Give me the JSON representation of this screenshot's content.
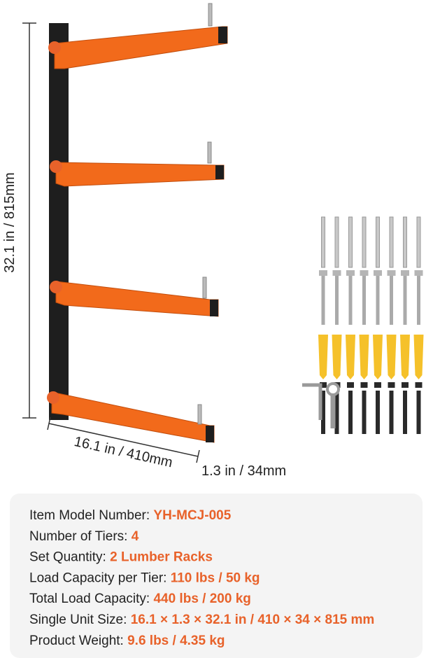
{
  "dimensions": {
    "height": "32.1 in / 815mm",
    "length": "16.1 in / 410mm",
    "width": "1.3 in / 34mm"
  },
  "specs": [
    {
      "label": "Item Model Number: ",
      "value": "YH-MCJ-005"
    },
    {
      "label": "Number of Tiers: ",
      "value": "4"
    },
    {
      "label": "Set Quantity: ",
      "value": "2 Lumber Racks"
    },
    {
      "label": "Load Capacity per Tier: ",
      "value": "110 lbs / 50 kg"
    },
    {
      "label": "Total Load Capacity: ",
      "value": "440 lbs / 200 kg"
    },
    {
      "label": "Single Unit Size: ",
      "value": "16.1 × 1.3 × 32.1 in / 410 × 34 × 815 mm"
    },
    {
      "label": "Product Weight: ",
      "value": "9.6 lbs / 4.35 kg"
    }
  ]
}
